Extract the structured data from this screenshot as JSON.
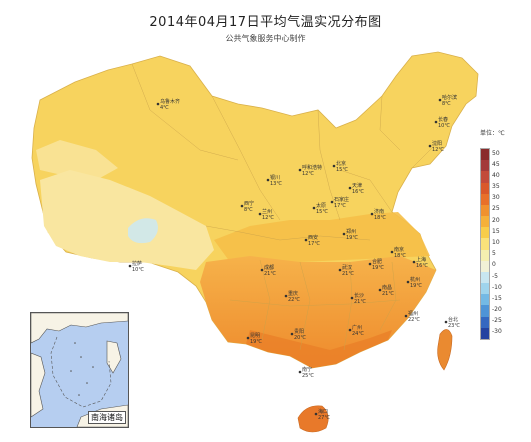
{
  "header": {
    "title": "2014年04月17日平均气温实况分布图",
    "subtitle": "公共气象服务中心制作"
  },
  "legend": {
    "unit": "单位：℃",
    "ticks": [
      "50",
      "45",
      "40",
      "35",
      "30",
      "25",
      "20",
      "15",
      "10",
      "5",
      "0",
      "-5",
      "-10",
      "-15",
      "-20",
      "-25",
      "-30"
    ],
    "colors": [
      "#8a2b2b",
      "#a33a3a",
      "#c24a3a",
      "#d9582a",
      "#e8702a",
      "#f0912f",
      "#f5b03a",
      "#f8cd4a",
      "#f9e27a",
      "#f5efb0",
      "#f1f1d6",
      "#c8e6f0",
      "#9fd4ec",
      "#74b9e4",
      "#4f94d6",
      "#3568c0",
      "#2443a0"
    ]
  },
  "inset": {
    "label": "南海诸岛"
  },
  "cities": [
    {
      "name": "乌鲁木齐",
      "temp": "4℃"
    },
    {
      "name": "哈尔滨",
      "temp": "8℃"
    },
    {
      "name": "长春",
      "temp": "10℃"
    },
    {
      "name": "沈阳",
      "temp": "12℃"
    },
    {
      "name": "呼和浩特",
      "temp": "12℃"
    },
    {
      "name": "银川",
      "temp": "13℃"
    },
    {
      "name": "北京",
      "temp": "15℃"
    },
    {
      "name": "天津",
      "temp": "16℃"
    },
    {
      "name": "石家庄",
      "temp": "17℃"
    },
    {
      "name": "太原",
      "temp": "15℃"
    },
    {
      "name": "济南",
      "temp": "18℃"
    },
    {
      "name": "西宁",
      "temp": "8℃"
    },
    {
      "name": "兰州",
      "temp": "12℃"
    },
    {
      "name": "郑州",
      "temp": "19℃"
    },
    {
      "name": "西安",
      "temp": "17℃"
    },
    {
      "name": "拉萨",
      "temp": "10℃"
    },
    {
      "name": "南京",
      "temp": "18℃"
    },
    {
      "name": "合肥",
      "temp": "19℃"
    },
    {
      "name": "上海",
      "temp": "16℃"
    },
    {
      "name": "武汉",
      "temp": "21℃"
    },
    {
      "name": "杭州",
      "temp": "19℃"
    },
    {
      "name": "成都",
      "temp": "21℃"
    },
    {
      "name": "重庆",
      "temp": "22℃"
    },
    {
      "name": "长沙",
      "temp": "21℃"
    },
    {
      "name": "南昌",
      "temp": "21℃"
    },
    {
      "name": "福州",
      "temp": "22℃"
    },
    {
      "name": "贵阳",
      "temp": "20℃"
    },
    {
      "name": "昆明",
      "temp": "19℃"
    },
    {
      "name": "南宁",
      "temp": "25℃"
    },
    {
      "name": "广州",
      "temp": "24℃"
    },
    {
      "name": "台北",
      "temp": "23℃"
    },
    {
      "name": "海口",
      "temp": "27℃"
    }
  ]
}
